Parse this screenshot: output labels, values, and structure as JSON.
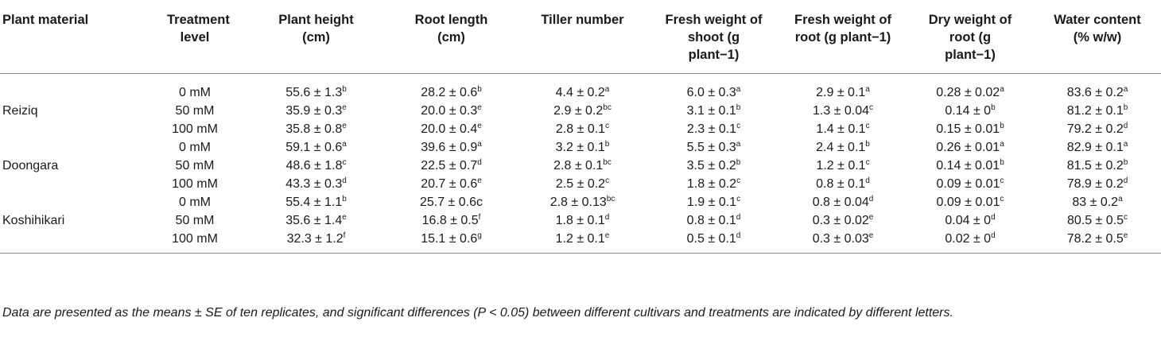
{
  "headers": [
    "Plant material",
    "Treatment level",
    "Plant height (cm)",
    "Root length (cm)",
    "Tiller number",
    "Fresh weight of shoot (g plant−1)",
    "Fresh weight of root (g plant−1)",
    "Dry weight of root (g plant−1)",
    "Water content (% w/w)"
  ],
  "rows": [
    {
      "material": "",
      "level": "0 mM",
      "cells": [
        [
          "55.6 ± 1.3",
          "b"
        ],
        [
          "28.2 ± 0.6",
          "b"
        ],
        [
          "4.4 ± 0.2",
          "a"
        ],
        [
          "6.0 ± 0.3",
          "a"
        ],
        [
          "2.9 ± 0.1",
          "a"
        ],
        [
          "0.28 ± 0.02",
          "a"
        ],
        [
          "83.6 ± 0.2",
          "a"
        ]
      ]
    },
    {
      "material": "Reiziq",
      "level": "50 mM",
      "cells": [
        [
          "35.9 ± 0.3",
          "e"
        ],
        [
          "20.0 ± 0.3",
          "e"
        ],
        [
          "2.9 ± 0.2",
          "bc"
        ],
        [
          "3.1 ± 0.1",
          "b"
        ],
        [
          "1.3 ± 0.04",
          "c"
        ],
        [
          "0.14 ± 0",
          "b"
        ],
        [
          "81.2 ± 0.1",
          "b"
        ]
      ]
    },
    {
      "material": "",
      "level": "100 mM",
      "cells": [
        [
          "35.8 ± 0.8",
          "e"
        ],
        [
          "20.0 ± 0.4",
          "e"
        ],
        [
          "2.8 ± 0.1",
          "c"
        ],
        [
          "2.3 ± 0.1",
          "c"
        ],
        [
          "1.4 ± 0.1",
          "c"
        ],
        [
          "0.15 ± 0.01",
          "b"
        ],
        [
          "79.2 ± 0.2",
          "d"
        ]
      ]
    },
    {
      "material": "",
      "level": "0 mM",
      "cells": [
        [
          "59.1 ± 0.6",
          "a"
        ],
        [
          "39.6 ± 0.9",
          "a"
        ],
        [
          "3.2 ± 0.1",
          "b"
        ],
        [
          "5.5 ± 0.3",
          "a"
        ],
        [
          "2.4 ± 0.1",
          "b"
        ],
        [
          "0.26 ± 0.01",
          "a"
        ],
        [
          "82.9 ± 0.1",
          "a"
        ]
      ]
    },
    {
      "material": "Doongara",
      "level": "50 mM",
      "cells": [
        [
          "48.6 ± 1.8",
          "c"
        ],
        [
          "22.5 ± 0.7",
          "d"
        ],
        [
          "2.8 ± 0.1",
          "bc"
        ],
        [
          "3.5 ± 0.2",
          "b"
        ],
        [
          "1.2 ± 0.1",
          "c"
        ],
        [
          "0.14 ± 0.01",
          "b"
        ],
        [
          "81.5 ± 0.2",
          "b"
        ]
      ]
    },
    {
      "material": "",
      "level": "100 mM",
      "cells": [
        [
          "43.3 ± 0.3",
          "d"
        ],
        [
          "20.7 ± 0.6",
          "e"
        ],
        [
          "2.5 ± 0.2",
          "c"
        ],
        [
          "1.8 ± 0.2",
          "c"
        ],
        [
          "0.8 ± 0.1",
          "d"
        ],
        [
          "0.09 ± 0.01",
          "c"
        ],
        [
          "78.9 ± 0.2",
          "d"
        ]
      ]
    },
    {
      "material": "",
      "level": "0 mM",
      "cells": [
        [
          "55.4 ± 1.1",
          "b"
        ],
        [
          "25.7 ± 0.6c",
          ""
        ],
        [
          "2.8 ± 0.13",
          "bc"
        ],
        [
          "1.9 ± 0.1",
          "c"
        ],
        [
          "0.8 ± 0.04",
          "d"
        ],
        [
          "0.09 ± 0.01",
          "c"
        ],
        [
          "83 ± 0.2",
          "a"
        ]
      ]
    },
    {
      "material": "Koshihikari",
      "level": "50 mM",
      "cells": [
        [
          "35.6 ± 1.4",
          "e"
        ],
        [
          "16.8 ± 0.5",
          "f"
        ],
        [
          "1.8 ± 0.1",
          "d"
        ],
        [
          "0.8 ± 0.1",
          "d"
        ],
        [
          "0.3 ± 0.02",
          "e"
        ],
        [
          "0.04 ± 0",
          "d"
        ],
        [
          "80.5 ± 0.5",
          "c"
        ]
      ]
    },
    {
      "material": "",
      "level": "100 mM",
      "cells": [
        [
          "32.3 ± 1.2",
          "f"
        ],
        [
          "15.1 ± 0.6",
          "g"
        ],
        [
          "1.2 ± 0.1",
          "e"
        ],
        [
          "0.5 ± 0.1",
          "d"
        ],
        [
          "0.3 ± 0.03",
          "e"
        ],
        [
          "0.02 ± 0",
          "d"
        ],
        [
          "78.2 ± 0.5",
          "e"
        ]
      ]
    }
  ],
  "footnote": "Data are presented as the means ± SE of ten replicates, and significant differences (P < 0.05) between different cultivars and treatments are indicated by different letters."
}
